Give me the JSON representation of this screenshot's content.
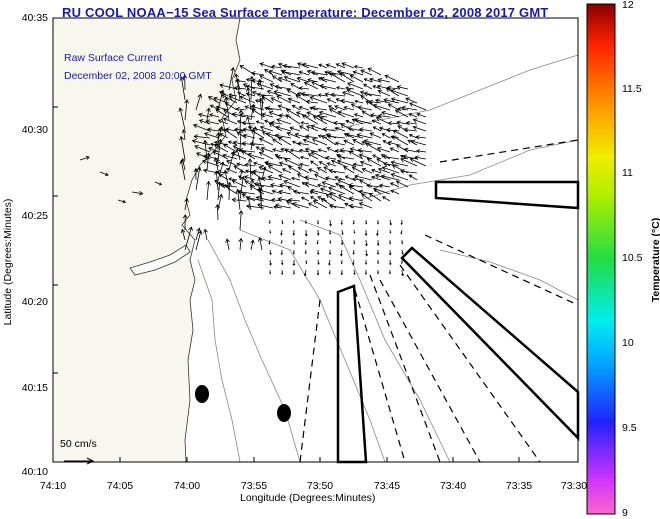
{
  "title": "RU COOL  NOAA−15  Sea Surface Temperature:  December 02, 2008 2017 GMT",
  "overlay": {
    "line1": "Raw Surface Current",
    "line2": "December 02, 2008 20:00 GMT"
  },
  "axes": {
    "xlabel": "Longitude (Degrees:Minutes)",
    "ylabel": "Latitude (Degrees:Minutes)",
    "xticks": [
      "74:10",
      "74:05",
      "74:00",
      "73:55",
      "73:50",
      "73:45",
      "73:40",
      "73:35",
      "73:30"
    ],
    "yticks": [
      "40:35",
      "40:30",
      "40:25",
      "40:20",
      "40:15",
      "40:10"
    ]
  },
  "scale": {
    "label": "50 cm/s",
    "value_cm_s": 50
  },
  "colorbar": {
    "label": "Temperature (°C)",
    "ticks": [
      "12",
      "11.5",
      "11",
      "10.5",
      "10",
      "9.5",
      "9"
    ],
    "min": 9,
    "max": 12
  },
  "colors": {
    "title": "#1a1aa6",
    "land": "#f7f7ef",
    "water": "#ffffff"
  }
}
